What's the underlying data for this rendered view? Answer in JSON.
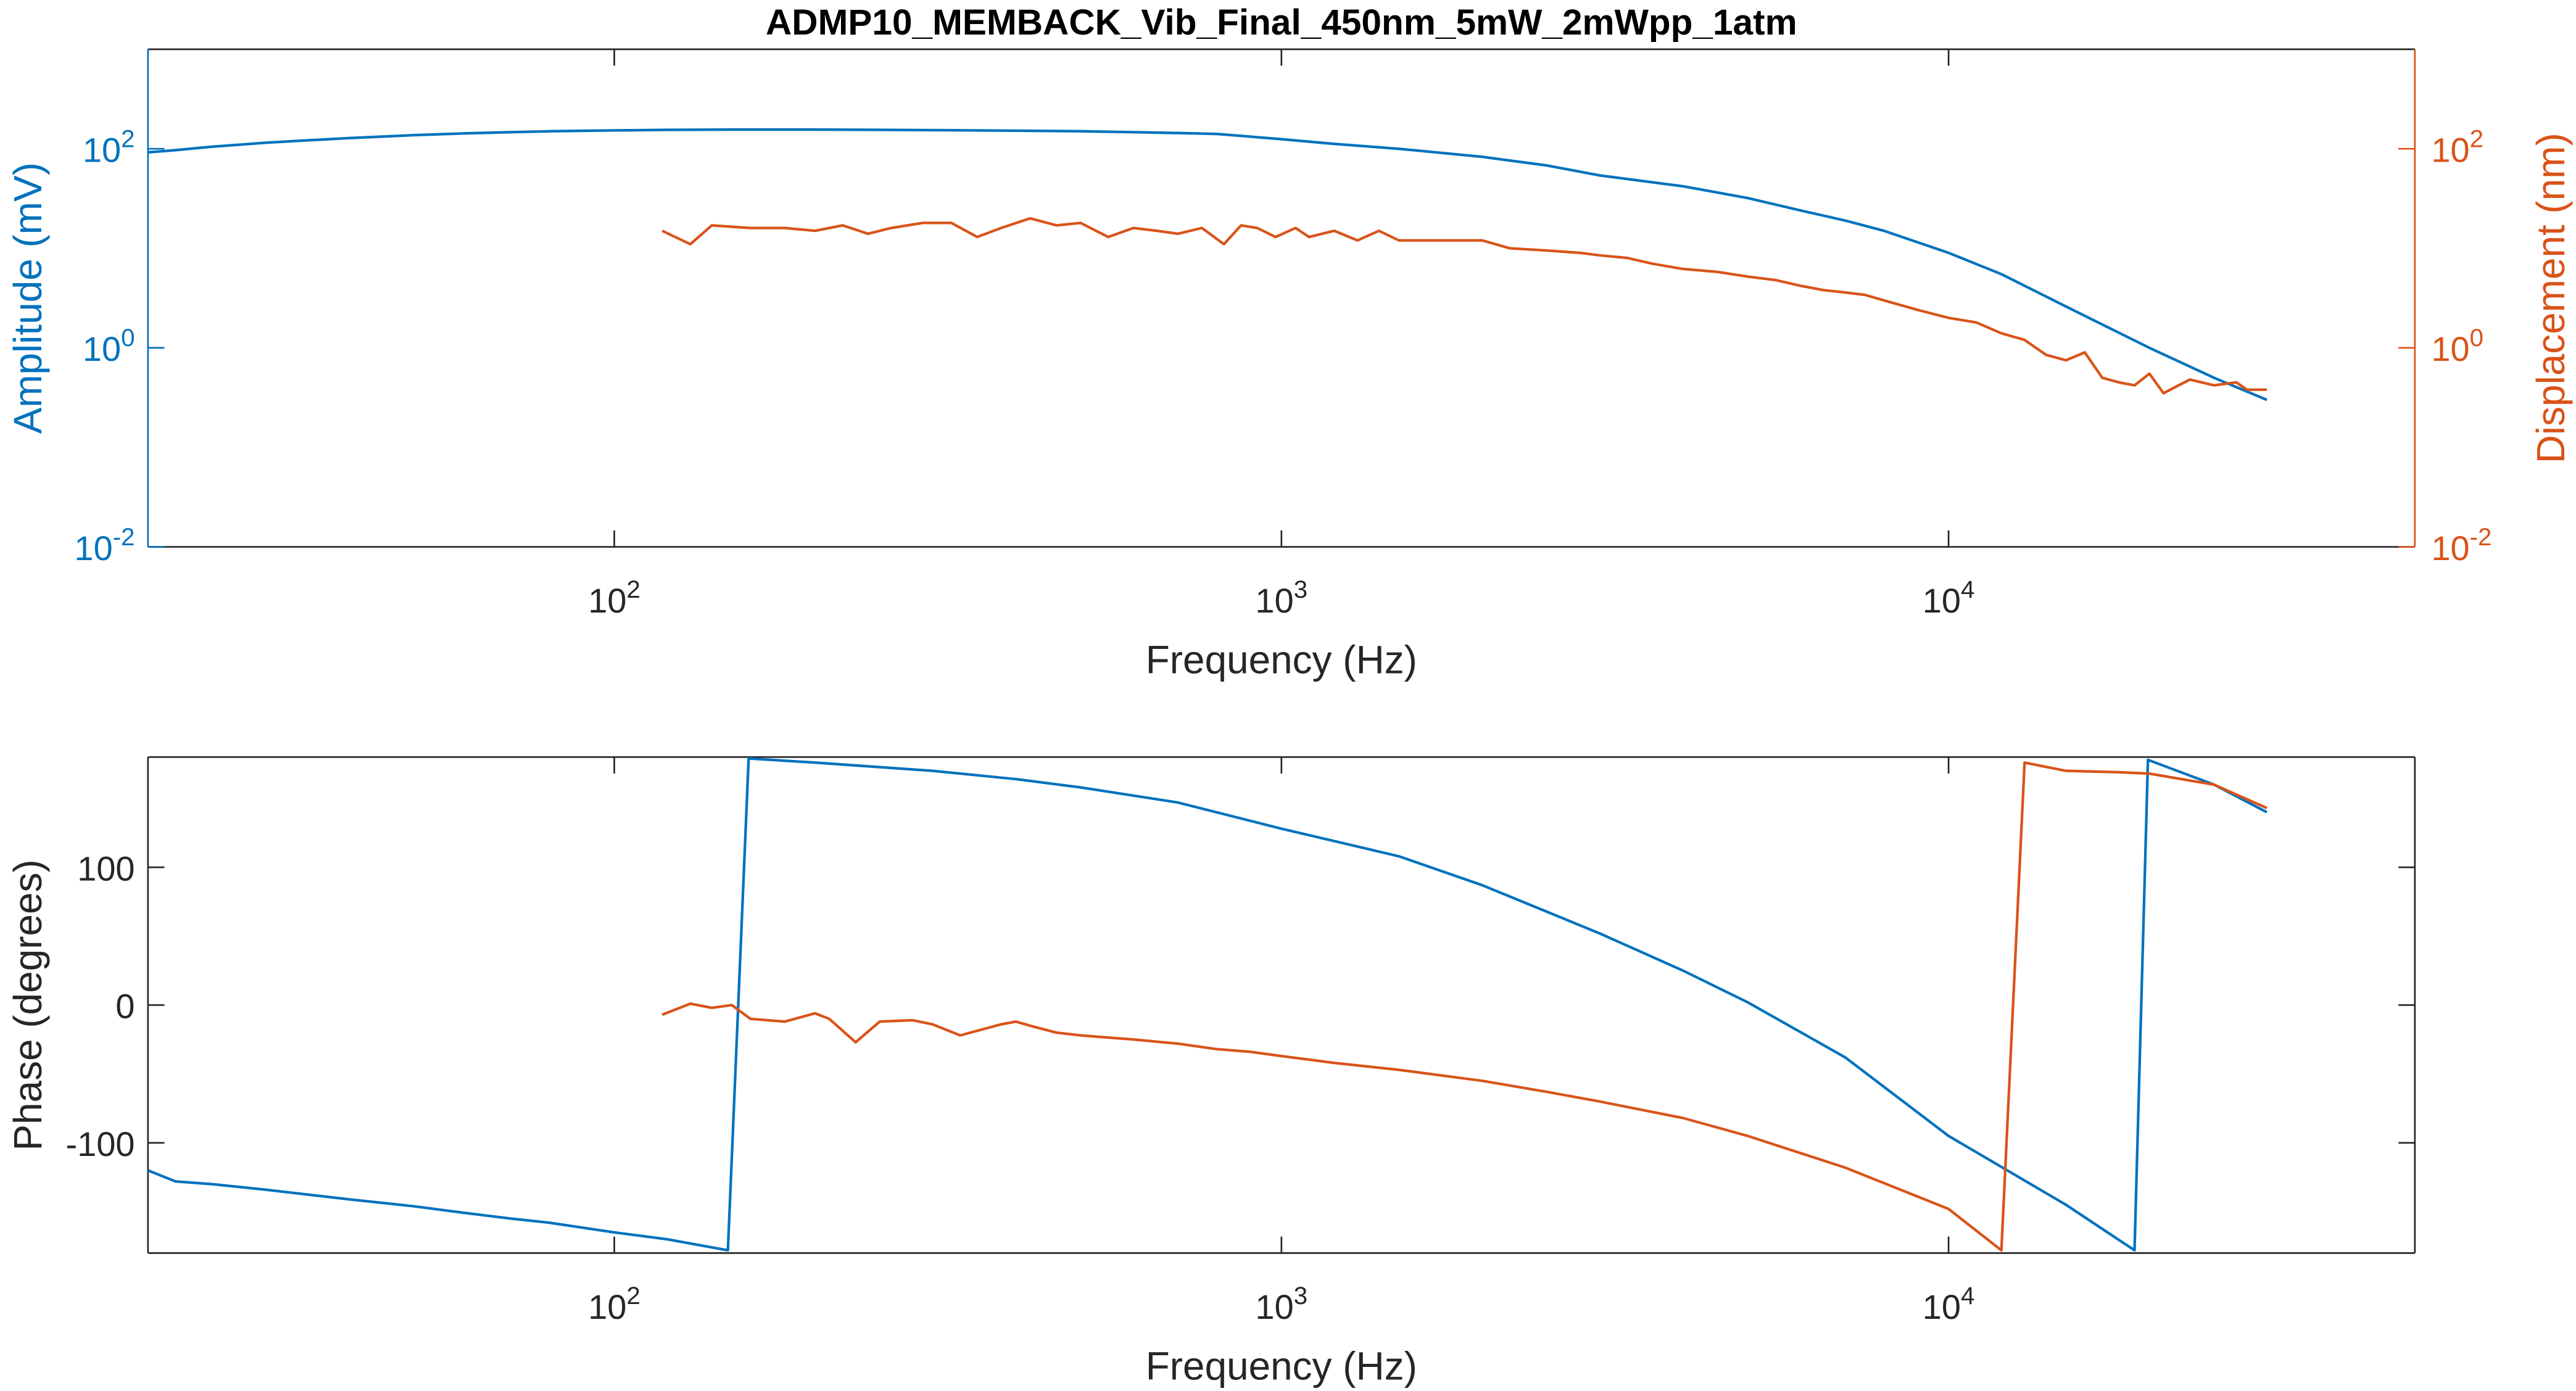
{
  "chart_data": [
    {
      "type": "line",
      "title": "ADMP10_MEMBACK_Vib_Final_450nm_5mW_2mWpp_1atm",
      "xlabel": "Frequency (Hz)",
      "ylabel": "Amplitude (mV)",
      "y2label": "Displacement (nm)",
      "xscale": "log",
      "yscale": "log",
      "xlim": [
        20,
        50000
      ],
      "ylim": [
        0.01,
        1000
      ],
      "y2lim": [
        0.01,
        1000
      ],
      "xticks": [
        {
          "value": 100,
          "label": "10^2"
        },
        {
          "value": 1000,
          "label": "10^3"
        },
        {
          "value": 10000,
          "label": "10^4"
        }
      ],
      "yticks": [
        {
          "value": 0.01,
          "label": "10^-2"
        },
        {
          "value": 1,
          "label": "10^0"
        },
        {
          "value": 100,
          "label": "10^2"
        }
      ],
      "y2ticks": [
        {
          "value": 0.01,
          "label": "10^-2"
        },
        {
          "value": 1,
          "label": "10^0"
        },
        {
          "value": 100,
          "label": "10^2"
        }
      ],
      "series": [
        {
          "color": "#0072BD",
          "x": [
            20,
            22,
            25,
            30,
            35,
            40,
            50,
            60,
            70,
            80,
            100,
            120,
            150,
            200,
            250,
            300,
            400,
            500,
            600,
            700,
            800,
            1000,
            1200,
            1500,
            2000,
            2500,
            3000,
            4000,
            5000,
            6000,
            7000,
            8000,
            10000,
            12000,
            15000,
            20000,
            25000,
            30000
          ],
          "values": [
            92,
            97,
            105,
            115,
            122,
            128,
            137,
            143,
            147,
            150,
            153,
            155,
            156,
            156,
            155,
            154,
            152,
            150,
            147,
            144,
            141,
            125,
            112,
            100,
            83,
            68,
            54,
            42,
            32,
            24,
            19,
            15,
            9,
            5.5,
            2.6,
            1.0,
            0.5,
            0.3
          ]
        },
        {
          "color": "#D95319",
          "axis": "y2",
          "x": [
            118,
            130,
            140,
            160,
            180,
            200,
            220,
            240,
            260,
            290,
            320,
            350,
            380,
            420,
            460,
            500,
            550,
            600,
            650,
            700,
            760,
            820,
            870,
            920,
            980,
            1050,
            1100,
            1200,
            1300,
            1400,
            1500,
            1650,
            1800,
            2000,
            2200,
            2500,
            2800,
            3000,
            3300,
            3600,
            4000,
            4500,
            5000,
            5500,
            6000,
            6500,
            7000,
            7500,
            8000,
            9000,
            10000,
            11000,
            12000,
            13000,
            14000,
            15000,
            16000,
            17000,
            18000,
            19000,
            20000,
            21000,
            23000,
            25000,
            27000,
            28000,
            30000
          ],
          "values": [
            15,
            11,
            17,
            16,
            16,
            15,
            17,
            14,
            16,
            18,
            18,
            13,
            16,
            20,
            17,
            18,
            13,
            16,
            15,
            14,
            16,
            11,
            17,
            16,
            13,
            16,
            13,
            15,
            12,
            15,
            12,
            12,
            12,
            12,
            10,
            9.5,
            9,
            8.5,
            8,
            7,
            6.2,
            5.8,
            5.2,
            4.8,
            4.2,
            3.8,
            3.6,
            3.4,
            3.0,
            2.4,
            2.0,
            1.8,
            1.4,
            1.2,
            0.85,
            0.75,
            0.9,
            0.5,
            0.45,
            0.42,
            0.55,
            0.35,
            0.48,
            0.42,
            0.45,
            0.38,
            0.38
          ]
        }
      ]
    },
    {
      "type": "line",
      "xlabel": "Frequency (Hz)",
      "ylabel": "Phase (degrees)",
      "xscale": "log",
      "xlim": [
        20,
        50000
      ],
      "ylim": [
        -180,
        180
      ],
      "xticks": [
        {
          "value": 100,
          "label": "10^2"
        },
        {
          "value": 1000,
          "label": "10^3"
        },
        {
          "value": 10000,
          "label": "10^4"
        }
      ],
      "yticks": [
        -100,
        0,
        100
      ],
      "series": [
        {
          "color": "#0072BD",
          "x": [
            20,
            22,
            25,
            30,
            40,
            50,
            60,
            70,
            80,
            100,
            120,
            148,
            159,
            200,
            300,
            400,
            500,
            700,
            1000,
            1500,
            2000,
            3000,
            4000,
            5000,
            7000,
            10000,
            15000,
            19000,
            19900,
            25000,
            30000
          ],
          "values": [
            -120,
            -128,
            -130,
            -134,
            -141,
            -146,
            -151,
            -155,
            -158,
            -165,
            -170,
            -178,
            179,
            176,
            170,
            164,
            158,
            147,
            128,
            108,
            87,
            52,
            25,
            2,
            -38,
            -95,
            -145,
            -178,
            178,
            160,
            140
          ]
        },
        {
          "color": "#D95319",
          "x": [
            118,
            130,
            140,
            150,
            160,
            180,
            200,
            210,
            230,
            250,
            280,
            300,
            330,
            380,
            400,
            420,
            460,
            500,
            600,
            700,
            800,
            900,
            1000,
            1200,
            1500,
            2000,
            2500,
            3000,
            4000,
            5000,
            7000,
            10000,
            12000,
            13000,
            15000,
            18000,
            20000,
            25000,
            30000
          ],
          "values": [
            -7,
            1,
            -2,
            0,
            -10,
            -12,
            -6,
            -10,
            -27,
            -12,
            -11,
            -14,
            -22,
            -14,
            -12,
            -15,
            -20,
            -22,
            -25,
            -28,
            -32,
            -34,
            -37,
            -42,
            -47,
            -55,
            -63,
            -70,
            -82,
            -95,
            -118,
            -148,
            -178,
            176,
            170,
            169,
            168,
            160,
            143
          ]
        }
      ]
    }
  ]
}
